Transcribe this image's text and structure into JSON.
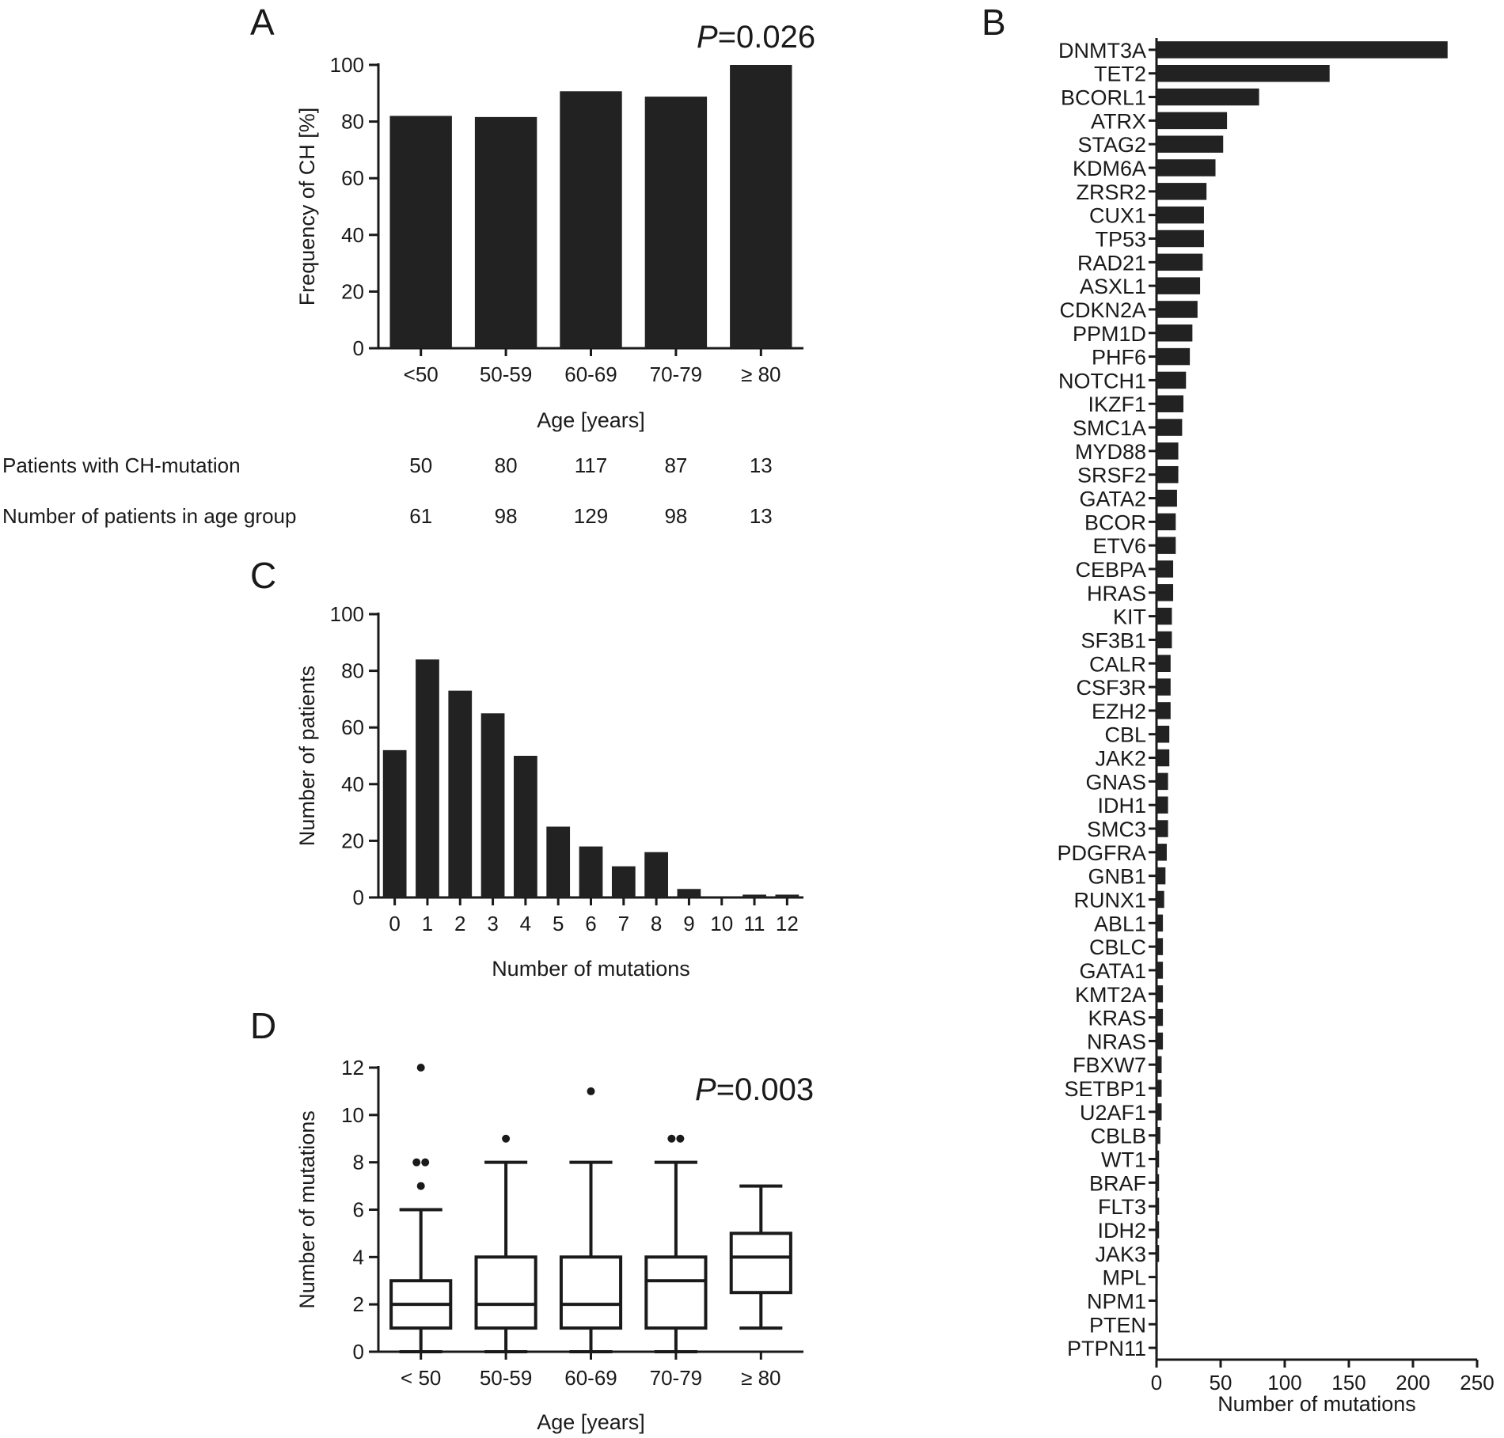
{
  "panel_letters": {
    "a": "A",
    "b": "B",
    "c": "C",
    "d": "D"
  },
  "pvalues": {
    "a": {
      "italic": "P",
      "rest": "=0.026"
    },
    "d": {
      "italic": "P",
      "rest": "=0.003"
    }
  },
  "table": {
    "row1_label": "Patients with CH-mutation",
    "row2_label": "Number of patients in age group",
    "row1_values": [
      "50",
      "80",
      "117",
      "87",
      "13"
    ],
    "row2_values": [
      "61",
      "98",
      "129",
      "98",
      "13"
    ]
  },
  "colors": {
    "bar": "#222222",
    "axis": "#1a1a1a",
    "background": "#ffffff"
  },
  "chart_data": [
    {
      "id": "A",
      "type": "bar",
      "categories": [
        "<50",
        "50-59",
        "60-69",
        "70-79",
        "≥ 80"
      ],
      "values": [
        82,
        81.6,
        90.7,
        88.8,
        100
      ],
      "xlabel": "Age [years]",
      "ylabel": "Frequency of CH [%]",
      "ylim": [
        0,
        100
      ],
      "yticks": [
        "0",
        "20",
        "40",
        "60",
        "80",
        "100"
      ],
      "grid": false
    },
    {
      "id": "B",
      "type": "bar",
      "orientation": "horizontal",
      "categories": [
        "DNMT3A",
        "TET2",
        "BCORL1",
        "ATRX",
        "STAG2",
        "KDM6A",
        "ZRSR2",
        "CUX1",
        "TP53",
        "RAD21",
        "ASXL1",
        "CDKN2A",
        "PPM1D",
        "PHF6",
        "NOTCH1",
        "IKZF1",
        "SMC1A",
        "MYD88",
        "SRSF2",
        "GATA2",
        "BCOR",
        "ETV6",
        "CEBPA",
        "HRAS",
        "KIT",
        "SF3B1",
        "CALR",
        "CSF3R",
        "EZH2",
        "CBL",
        "JAK2",
        "GNAS",
        "IDH1",
        "SMC3",
        "PDGFRA",
        "GNB1",
        "RUNX1",
        "ABL1",
        "CBLC",
        "GATA1",
        "KMT2A",
        "KRAS",
        "NRAS",
        "FBXW7",
        "SETBP1",
        "U2AF1",
        "CBLB",
        "WT1",
        "BRAF",
        "FLT3",
        "IDH2",
        "JAK3",
        "MPL",
        "NPM1",
        "PTEN",
        "PTPN11"
      ],
      "values": [
        227,
        135,
        80,
        55,
        52,
        46,
        39,
        37,
        37,
        36,
        34,
        32,
        28,
        26,
        23,
        21,
        20,
        17,
        17,
        16,
        15,
        15,
        13,
        13,
        12,
        12,
        11,
        11,
        11,
        10,
        10,
        9,
        9,
        9,
        8,
        7,
        6,
        5,
        5,
        5,
        5,
        5,
        5,
        4,
        4,
        4,
        3,
        2,
        2,
        2,
        2,
        2,
        1,
        1,
        1,
        1
      ],
      "xlabel": "Number of mutations",
      "xlim": [
        0,
        250
      ],
      "xticks": [
        "0",
        "50",
        "100",
        "150",
        "200",
        "250"
      ],
      "grid": false
    },
    {
      "id": "C",
      "type": "bar",
      "categories": [
        "0",
        "1",
        "2",
        "3",
        "4",
        "5",
        "6",
        "7",
        "8",
        "9",
        "10",
        "11",
        "12"
      ],
      "values": [
        52,
        84,
        73,
        65,
        50,
        25,
        18,
        11,
        16,
        3,
        0,
        1,
        1
      ],
      "xlabel": "Number of mutations",
      "ylabel": "Number of patients",
      "ylim": [
        0,
        100
      ],
      "yticks": [
        "0",
        "20",
        "40",
        "60",
        "80",
        "100"
      ],
      "grid": false
    },
    {
      "id": "D",
      "type": "box",
      "categories": [
        "< 50",
        "50-59",
        "60-69",
        "70-79",
        "≥ 80"
      ],
      "boxes": [
        {
          "min": 0,
          "q1": 1,
          "median": 2,
          "q3": 3,
          "max": 6,
          "outliers": [
            7,
            8,
            8,
            12
          ]
        },
        {
          "min": 0,
          "q1": 1,
          "median": 2,
          "q3": 4,
          "max": 8,
          "outliers": [
            9
          ]
        },
        {
          "min": 0,
          "q1": 1,
          "median": 2,
          "q3": 4,
          "max": 8,
          "outliers": [
            11
          ]
        },
        {
          "min": 0,
          "q1": 1,
          "median": 3,
          "q3": 4,
          "max": 8,
          "outliers": [
            9,
            9
          ]
        },
        {
          "min": 1,
          "q1": 2.5,
          "median": 4,
          "q3": 5,
          "max": 7,
          "outliers": []
        }
      ],
      "xlabel": "Age [years]",
      "ylabel": "Number of mutations",
      "ylim": [
        0,
        12
      ],
      "yticks": [
        "0",
        "2",
        "4",
        "6",
        "8",
        "10",
        "12"
      ],
      "grid": false
    }
  ]
}
